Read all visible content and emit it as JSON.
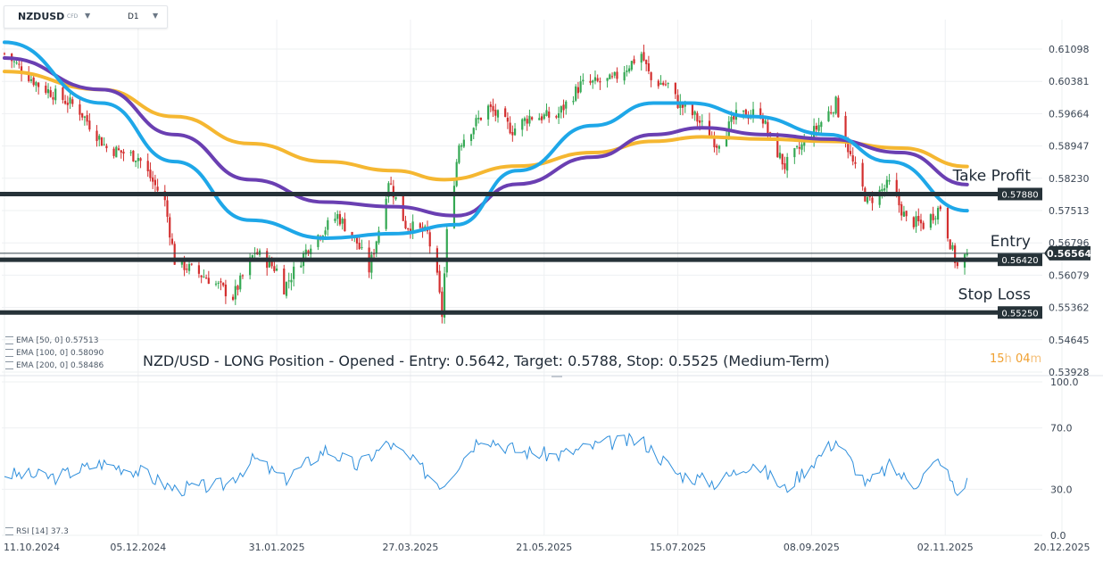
{
  "toolbar": {
    "symbol": "NZDUSD",
    "instrument_type": "CFD",
    "timeframe": "D1"
  },
  "indicators": {
    "ema50_label": "EMA [50, 0] 0.57513",
    "ema100_label": "EMA [100, 0] 0.58090",
    "ema200_label": "EMA [200, 0] 0.58486",
    "rsi_label": "RSI [14] 37.3"
  },
  "caption": "NZD/USD - LONG Position - Opened - Entry: 0.5642, Target: 0.5788, Stop: 0.5525 (Medium-Term)",
  "countdown": {
    "hours": "15",
    "h_unit": "h",
    "minutes": "04",
    "m_unit": "m"
  },
  "colors": {
    "bull": "#34a853",
    "bear": "#d32f2f",
    "ema50": "#1ea7e8",
    "ema100": "#6a3fb2",
    "ema200": "#f5b731",
    "level_line": "#263238",
    "rsi": "#2f8fdc",
    "grid": "#eef0f2"
  },
  "chart_data": [
    {
      "type": "candlestick",
      "title": "NZDUSD D1",
      "ylim": [
        0.5393,
        0.615
      ],
      "y_ticks": [
        "0.61098",
        "0.60381",
        "0.59664",
        "0.58947",
        "0.58230",
        "0.57513",
        "0.56796",
        "0.56079",
        "0.55362",
        "0.54645",
        "0.53928"
      ],
      "x_ticks": [
        "11.10.2024",
        "05.12.2024",
        "31.01.2025",
        "27.03.2025",
        "21.05.2025",
        "15.07.2025",
        "08.09.2025",
        "02.11.2025",
        "20.12.2025"
      ],
      "approx_daily_close_path": [
        {
          "date": "2024-10-11",
          "close": 0.61
        },
        {
          "date": "2024-10-25",
          "close": 0.603
        },
        {
          "date": "2024-11-10",
          "close": 0.598
        },
        {
          "date": "2024-11-22",
          "close": 0.589
        },
        {
          "date": "2024-12-05",
          "close": 0.587
        },
        {
          "date": "2024-12-16",
          "close": 0.577
        },
        {
          "date": "2024-12-20",
          "close": 0.564
        },
        {
          "date": "2025-01-03",
          "close": 0.56
        },
        {
          "date": "2025-01-13",
          "close": 0.556
        },
        {
          "date": "2025-01-22",
          "close": 0.566
        },
        {
          "date": "2025-01-31",
          "close": 0.562
        },
        {
          "date": "2025-02-03",
          "close": 0.558
        },
        {
          "date": "2025-02-14",
          "close": 0.568
        },
        {
          "date": "2025-02-25",
          "close": 0.574
        },
        {
          "date": "2025-03-05",
          "close": 0.568
        },
        {
          "date": "2025-03-10",
          "close": 0.562
        },
        {
          "date": "2025-03-14",
          "close": 0.571
        },
        {
          "date": "2025-03-18",
          "close": 0.582
        },
        {
          "date": "2025-03-25",
          "close": 0.572
        },
        {
          "date": "2025-04-03",
          "close": 0.57
        },
        {
          "date": "2025-04-07",
          "close": 0.56
        },
        {
          "date": "2025-04-09",
          "close": 0.552
        },
        {
          "date": "2025-04-11",
          "close": 0.57
        },
        {
          "date": "2025-04-16",
          "close": 0.59
        },
        {
          "date": "2025-04-28",
          "close": 0.598
        },
        {
          "date": "2025-05-08",
          "close": 0.593
        },
        {
          "date": "2025-05-15",
          "close": 0.596
        },
        {
          "date": "2025-05-26",
          "close": 0.596
        },
        {
          "date": "2025-06-05",
          "close": 0.603
        },
        {
          "date": "2025-06-18",
          "close": 0.604
        },
        {
          "date": "2025-06-30",
          "close": 0.61
        },
        {
          "date": "2025-07-04",
          "close": 0.604
        },
        {
          "date": "2025-07-11",
          "close": 0.603
        },
        {
          "date": "2025-07-15",
          "close": 0.599
        },
        {
          "date": "2025-07-22",
          "close": 0.596
        },
        {
          "date": "2025-07-31",
          "close": 0.59
        },
        {
          "date": "2025-08-08",
          "close": 0.596
        },
        {
          "date": "2025-08-18",
          "close": 0.597
        },
        {
          "date": "2025-08-22",
          "close": 0.591
        },
        {
          "date": "2025-08-28",
          "close": 0.585
        },
        {
          "date": "2025-09-08",
          "close": 0.592
        },
        {
          "date": "2025-09-18",
          "close": 0.599
        },
        {
          "date": "2025-09-24",
          "close": 0.587
        },
        {
          "date": "2025-10-01",
          "close": 0.577
        },
        {
          "date": "2025-10-10",
          "close": 0.581
        },
        {
          "date": "2025-10-17",
          "close": 0.573
        },
        {
          "date": "2025-10-24",
          "close": 0.572
        },
        {
          "date": "2025-10-31",
          "close": 0.576
        },
        {
          "date": "2025-11-05",
          "close": 0.566
        },
        {
          "date": "2025-11-07",
          "close": 0.5625
        },
        {
          "date": "2025-11-11",
          "close": 0.5656
        }
      ],
      "emas": [
        {
          "name": "EMA [50, 0]",
          "last": 0.57513,
          "color_key": "ema50",
          "path": [
            {
              "date": "2024-10-11",
              "v": 0.6125
            },
            {
              "date": "2024-11-20",
              "v": 0.599
            },
            {
              "date": "2024-12-20",
              "v": 0.586
            },
            {
              "date": "2025-01-20",
              "v": 0.573
            },
            {
              "date": "2025-02-20",
              "v": 0.569
            },
            {
              "date": "2025-03-20",
              "v": 0.57
            },
            {
              "date": "2025-04-15",
              "v": 0.572
            },
            {
              "date": "2025-05-10",
              "v": 0.584
            },
            {
              "date": "2025-06-10",
              "v": 0.594
            },
            {
              "date": "2025-07-05",
              "v": 0.599
            },
            {
              "date": "2025-07-20",
              "v": 0.599
            },
            {
              "date": "2025-08-15",
              "v": 0.596
            },
            {
              "date": "2025-09-15",
              "v": 0.592
            },
            {
              "date": "2025-10-10",
              "v": 0.586
            },
            {
              "date": "2025-11-11",
              "v": 0.5751
            }
          ]
        },
        {
          "name": "EMA [100, 0]",
          "last": 0.5809,
          "color_key": "ema100",
          "path": [
            {
              "date": "2024-10-11",
              "v": 0.609
            },
            {
              "date": "2024-11-20",
              "v": 0.602
            },
            {
              "date": "2024-12-20",
              "v": 0.592
            },
            {
              "date": "2025-01-20",
              "v": 0.582
            },
            {
              "date": "2025-02-20",
              "v": 0.577
            },
            {
              "date": "2025-03-20",
              "v": 0.576
            },
            {
              "date": "2025-04-15",
              "v": 0.574
            },
            {
              "date": "2025-05-10",
              "v": 0.581
            },
            {
              "date": "2025-06-10",
              "v": 0.587
            },
            {
              "date": "2025-07-05",
              "v": 0.592
            },
            {
              "date": "2025-07-25",
              "v": 0.5935
            },
            {
              "date": "2025-08-20",
              "v": 0.592
            },
            {
              "date": "2025-09-15",
              "v": 0.591
            },
            {
              "date": "2025-10-15",
              "v": 0.588
            },
            {
              "date": "2025-11-11",
              "v": 0.5809
            }
          ]
        },
        {
          "name": "EMA [200, 0]",
          "last": 0.58486,
          "color_key": "ema200",
          "path": [
            {
              "date": "2024-10-11",
              "v": 0.606
            },
            {
              "date": "2024-11-20",
              "v": 0.602
            },
            {
              "date": "2024-12-20",
              "v": 0.596
            },
            {
              "date": "2025-01-20",
              "v": 0.59
            },
            {
              "date": "2025-02-20",
              "v": 0.586
            },
            {
              "date": "2025-03-20",
              "v": 0.584
            },
            {
              "date": "2025-04-10",
              "v": 0.582
            },
            {
              "date": "2025-05-10",
              "v": 0.585
            },
            {
              "date": "2025-06-10",
              "v": 0.588
            },
            {
              "date": "2025-07-05",
              "v": 0.5905
            },
            {
              "date": "2025-07-25",
              "v": 0.5915
            },
            {
              "date": "2025-08-20",
              "v": 0.591
            },
            {
              "date": "2025-09-15",
              "v": 0.5905
            },
            {
              "date": "2025-10-15",
              "v": 0.589
            },
            {
              "date": "2025-11-11",
              "v": 0.5849
            }
          ]
        }
      ],
      "levels": [
        {
          "label": "Take Profit",
          "value": 0.5788,
          "tag": "0.57880"
        },
        {
          "label": "Entry",
          "value": 0.5642,
          "tag": "0.56420"
        },
        {
          "label": "Stop Loss",
          "value": 0.5525,
          "tag": "0.55250"
        }
      ],
      "current_price": {
        "value": 0.56564,
        "tag": "0.56564"
      }
    },
    {
      "type": "line",
      "title": "RSI [14]",
      "ylim": [
        0,
        100
      ],
      "y_ticks": [
        "100.0",
        "70.0",
        "30.0",
        "0.0"
      ],
      "last": 37.3,
      "approx_values": [
        {
          "date": "2024-10-11",
          "v": 40
        },
        {
          "date": "2024-11-01",
          "v": 38
        },
        {
          "date": "2024-11-20",
          "v": 47
        },
        {
          "date": "2024-12-05",
          "v": 42
        },
        {
          "date": "2024-12-20",
          "v": 30
        },
        {
          "date": "2025-01-10",
          "v": 33
        },
        {
          "date": "2025-01-22",
          "v": 50
        },
        {
          "date": "2025-02-03",
          "v": 36
        },
        {
          "date": "2025-02-20",
          "v": 56
        },
        {
          "date": "2025-03-05",
          "v": 45
        },
        {
          "date": "2025-03-18",
          "v": 60
        },
        {
          "date": "2025-04-09",
          "v": 33
        },
        {
          "date": "2025-04-25",
          "v": 65
        },
        {
          "date": "2025-05-10",
          "v": 55
        },
        {
          "date": "2025-05-26",
          "v": 52
        },
        {
          "date": "2025-06-15",
          "v": 60
        },
        {
          "date": "2025-06-30",
          "v": 62
        },
        {
          "date": "2025-07-15",
          "v": 40
        },
        {
          "date": "2025-07-31",
          "v": 34
        },
        {
          "date": "2025-08-15",
          "v": 48
        },
        {
          "date": "2025-08-28",
          "v": 30
        },
        {
          "date": "2025-09-10",
          "v": 50
        },
        {
          "date": "2025-09-18",
          "v": 62
        },
        {
          "date": "2025-10-01",
          "v": 33
        },
        {
          "date": "2025-10-10",
          "v": 45
        },
        {
          "date": "2025-10-20",
          "v": 33
        },
        {
          "date": "2025-10-31",
          "v": 50
        },
        {
          "date": "2025-11-07",
          "v": 26
        },
        {
          "date": "2025-11-11",
          "v": 37.3
        }
      ]
    }
  ]
}
